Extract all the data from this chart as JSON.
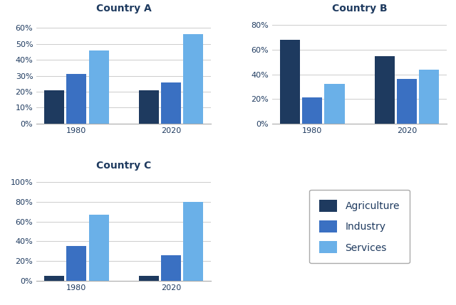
{
  "countries": [
    "Country A",
    "Country B",
    "Country C"
  ],
  "years": [
    1980,
    2020
  ],
  "categories": [
    "Agriculture",
    "Industry",
    "Services"
  ],
  "colors": [
    "#1e3a5f",
    "#3a70c2",
    "#6ab0e8"
  ],
  "data": {
    "Country A": {
      "1980": [
        21,
        31,
        46
      ],
      "2020": [
        21,
        26,
        56
      ]
    },
    "Country B": {
      "1980": [
        68,
        21,
        32
      ],
      "2020": [
        55,
        36,
        44
      ]
    },
    "Country C": {
      "1980": [
        5,
        35,
        67
      ],
      "2020": [
        5,
        26,
        80
      ]
    }
  },
  "ylims": {
    "Country A": [
      0,
      68
    ],
    "Country B": [
      0,
      88
    ],
    "Country C": [
      0,
      110
    ]
  },
  "yticks": {
    "Country A": [
      0,
      10,
      20,
      30,
      40,
      50,
      60
    ],
    "Country B": [
      0,
      20,
      40,
      60,
      80
    ],
    "Country C": [
      0,
      20,
      40,
      60,
      80,
      100
    ]
  },
  "background_color": "#ffffff",
  "title_color": "#1e3a5f",
  "title_fontsize": 10,
  "tick_fontsize": 8
}
